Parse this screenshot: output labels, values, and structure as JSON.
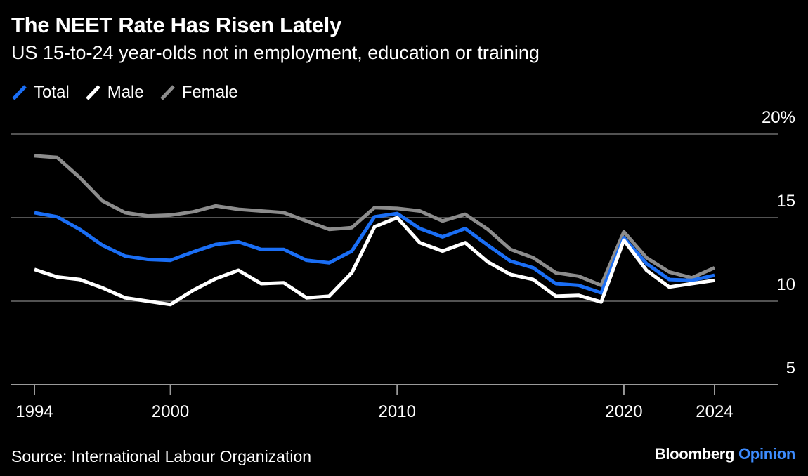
{
  "title": "The NEET Rate Has Risen Lately",
  "subtitle": "US 15-to-24 year-olds not in employment, education or training",
  "legend": [
    {
      "name": "Total",
      "color": "#1a6ef5"
    },
    {
      "name": "Male",
      "color": "#ffffff"
    },
    {
      "name": "Female",
      "color": "#8c8c8c"
    }
  ],
  "source": "Source: International Labour Organization",
  "brand": {
    "part1": "Bloomberg",
    "part2": "Opinion"
  },
  "chart_data": {
    "type": "line",
    "title": "The NEET Rate Has Risen Lately",
    "subtitle": "US 15-to-24 year-olds not in employment, education or training",
    "xlabel": "",
    "ylabel": "",
    "x": [
      1994,
      1995,
      1996,
      1997,
      1998,
      1999,
      2000,
      2001,
      2002,
      2003,
      2004,
      2005,
      2006,
      2007,
      2008,
      2009,
      2010,
      2011,
      2012,
      2013,
      2014,
      2015,
      2016,
      2017,
      2018,
      2019,
      2020,
      2021,
      2022,
      2023,
      2024
    ],
    "xticks": [
      1994,
      2000,
      2010,
      2020,
      2024
    ],
    "xtick_labels": [
      "1994",
      "2000",
      "2010",
      "2020",
      "2024"
    ],
    "xlim": [
      1994,
      2026.7
    ],
    "ylim": [
      5,
      20
    ],
    "yticks": [
      5,
      10,
      15,
      20
    ],
    "ytick_labels": [
      "5",
      "10",
      "15",
      "20%"
    ],
    "grid": true,
    "legend_position": "top-left",
    "series": [
      {
        "name": "Female",
        "color": "#8c8c8c",
        "values": [
          18.7,
          18.6,
          17.4,
          16.0,
          15.3,
          15.1,
          15.15,
          15.35,
          15.7,
          15.5,
          15.4,
          15.3,
          14.8,
          14.3,
          14.4,
          15.6,
          15.55,
          15.4,
          14.8,
          15.2,
          14.3,
          13.1,
          12.6,
          11.7,
          11.5,
          10.95,
          14.15,
          12.6,
          11.75,
          11.4,
          12.0
        ]
      },
      {
        "name": "Total",
        "color": "#1a6ef5",
        "values": [
          15.3,
          15.05,
          14.3,
          13.35,
          12.7,
          12.5,
          12.45,
          12.95,
          13.4,
          13.55,
          13.1,
          13.1,
          12.45,
          12.3,
          13.0,
          15.05,
          15.25,
          14.35,
          13.85,
          14.35,
          13.35,
          12.4,
          12.0,
          11.05,
          10.95,
          10.5,
          13.8,
          12.25,
          11.3,
          11.25,
          11.55
        ]
      },
      {
        "name": "Male",
        "color": "#ffffff",
        "values": [
          11.9,
          11.45,
          11.3,
          10.8,
          10.2,
          10.0,
          9.8,
          10.65,
          11.35,
          11.85,
          11.05,
          11.1,
          10.2,
          10.3,
          11.7,
          14.45,
          15.0,
          13.5,
          13.0,
          13.5,
          12.35,
          11.6,
          11.3,
          10.3,
          10.35,
          9.95,
          13.65,
          11.85,
          10.85,
          11.05,
          11.25
        ]
      }
    ]
  }
}
